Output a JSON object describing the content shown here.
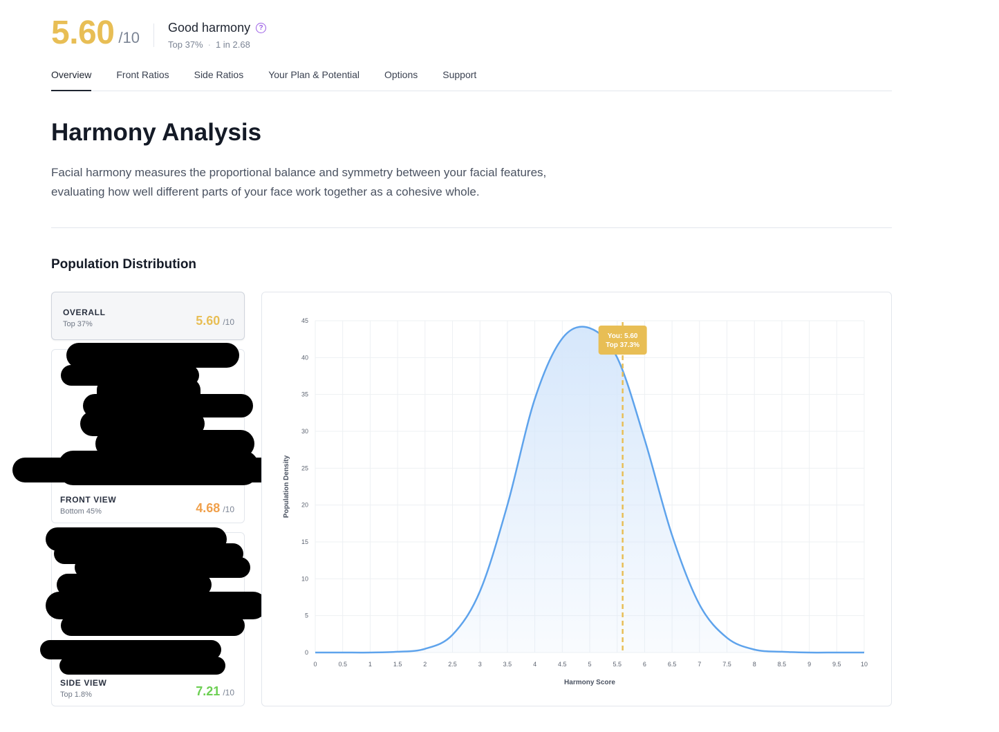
{
  "header": {
    "score": "5.60",
    "denominator": "/10",
    "title": "Good harmony",
    "help_icon": "question-circle-icon",
    "rank": "Top 37%",
    "separator": "·",
    "odds": "1 in 2.68"
  },
  "tabs": [
    {
      "label": "Overview",
      "active": true
    },
    {
      "label": "Front Ratios",
      "active": false
    },
    {
      "label": "Side Ratios",
      "active": false
    },
    {
      "label": "Your Plan & Potential",
      "active": false
    },
    {
      "label": "Options",
      "active": false
    },
    {
      "label": "Support",
      "active": false
    }
  ],
  "page": {
    "title": "Harmony Analysis",
    "description": "Facial harmony measures the proportional balance and symmetry between your facial features, evaluating how well different parts of your face work together as a cohesive whole.",
    "section_title": "Population Distribution"
  },
  "cards": {
    "overall": {
      "label": "OVERALL",
      "sub": "Top 37%",
      "score": "5.60",
      "denom": "/10",
      "color": "#e8be55"
    },
    "front": {
      "label": "FRONT VIEW",
      "sub": "Bottom 45%",
      "score": "4.68",
      "denom": "/10",
      "color": "#f0a04b"
    },
    "side": {
      "label": "SIDE VIEW",
      "sub": "Top 1.8%",
      "score": "7.21",
      "denom": "/10",
      "color": "#6ccf52"
    }
  },
  "colors": {
    "accent": "#e8be55",
    "curve": "#5ea3ec",
    "fill": "#d6e7fb"
  },
  "chart_data": {
    "type": "area",
    "xlabel": "Harmony Score",
    "ylabel": "Population Density",
    "xlim": [
      0,
      10
    ],
    "ylim": [
      0,
      45
    ],
    "x_ticks": [
      "0",
      "0.5",
      "1",
      "1.5",
      "2",
      "2.5",
      "3",
      "3.5",
      "4",
      "4.5",
      "5",
      "5.5",
      "6",
      "6.5",
      "7",
      "7.5",
      "8",
      "8.5",
      "9",
      "9.5",
      "10"
    ],
    "y_ticks": [
      "0",
      "5",
      "10",
      "15",
      "20",
      "25",
      "30",
      "35",
      "40",
      "45"
    ],
    "grid": true,
    "series": [
      {
        "x": [
          0,
          0.5,
          1,
          1.5,
          2,
          2.5,
          3,
          3.5,
          4,
          4.5,
          5,
          5.5,
          6,
          6.5,
          7,
          7.5,
          8,
          8.5,
          9,
          9.5,
          10
        ],
        "y": [
          0,
          0,
          0,
          0.1,
          0.5,
          2.4,
          8.3,
          20.0,
          34.4,
          42.6,
          44,
          40,
          28.9,
          15.9,
          6.5,
          2.0,
          0.4,
          0.1,
          0,
          0,
          0
        ]
      }
    ],
    "marker": {
      "x": 5.6,
      "label_line1": "You: 5.60",
      "label_line2": "Top 37.3%"
    }
  }
}
